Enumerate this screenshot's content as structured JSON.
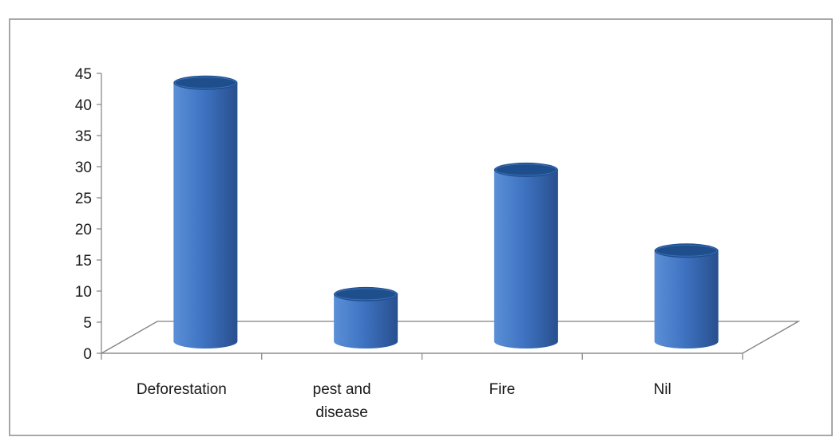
{
  "chart_data": {
    "type": "bar",
    "style": "3d-cylinder",
    "categories": [
      "Deforestation",
      "pest  and disease",
      "Fire",
      "Nil"
    ],
    "category_lines": [
      [
        "Deforestation"
      ],
      [
        "pest  and",
        "disease"
      ],
      [
        "Fire"
      ],
      [
        "Nil"
      ]
    ],
    "values": [
      43.5,
      9.5,
      29.5,
      16.5
    ],
    "title": "",
    "xlabel": "",
    "ylabel": "",
    "ylim": [
      0,
      45
    ],
    "yticks": [
      0,
      5,
      10,
      15,
      20,
      25,
      30,
      35,
      40,
      45
    ],
    "grid": false,
    "legend": "none",
    "colors": {
      "bar_light": "#5b8fd6",
      "bar_mid": "#3f74c3",
      "bar_dark": "#284f8e",
      "bar_top": "#1f4e8c",
      "axis": "#8a8a8a",
      "floor": "#808080",
      "frame": "#8c8c8c",
      "text": "#1a1a1a"
    }
  }
}
